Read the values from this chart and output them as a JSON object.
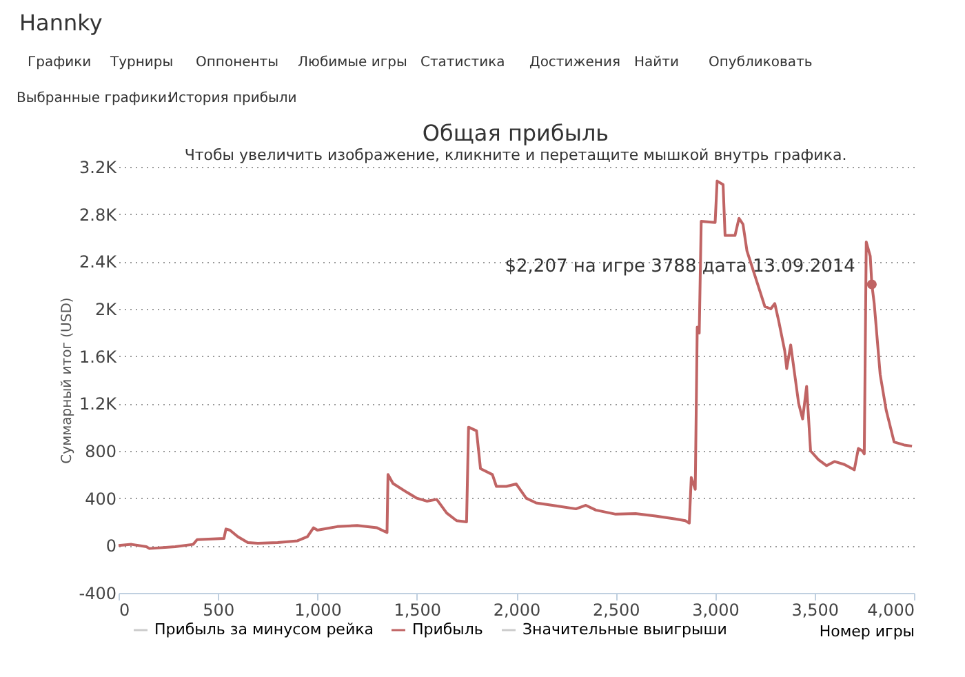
{
  "chart_data": {
    "type": "line",
    "title": "Общая прибыль",
    "subtitle": "Чтобы увеличить изображение, кликните и перетащите мышкой внутрь графика.",
    "xlabel": "Номер игры",
    "ylabel": "Суммарный итог (USD)",
    "annotations": [
      "Hannky",
      "Графики",
      "Турниры",
      "Оппоненты",
      "Любимые игры",
      "Статистика",
      "Достижения",
      "Найти",
      "Опубликовать",
      "Выбранные графики:",
      "История прибыли",
      {
        "text": "$2,207 на игре 3788 дата 13.09.2014",
        "x": 3788,
        "y": 2207
      }
    ],
    "series": [
      {
        "name": "Прибыль за минусом рейка",
        "color": "#cccccc",
        "values": [
          null
        ]
      },
      {
        "name": "Прибыль",
        "color": "#c06464",
        "x": [
          0,
          65,
          140,
          155,
          285,
          375,
          395,
          530,
          540,
          560,
          600,
          650,
          700,
          800,
          900,
          950,
          980,
          1000,
          1100,
          1200,
          1300,
          1350,
          1355,
          1380,
          1450,
          1500,
          1550,
          1600,
          1650,
          1700,
          1750,
          1760,
          1800,
          1820,
          1880,
          1900,
          1950,
          2000,
          2050,
          2100,
          2200,
          2300,
          2350,
          2400,
          2500,
          2600,
          2700,
          2800,
          2850,
          2870,
          2880,
          2900,
          2910,
          2920,
          2930,
          3000,
          3010,
          3040,
          3050,
          3100,
          3120,
          3140,
          3160,
          3250,
          3280,
          3300,
          3320,
          3350,
          3360,
          3380,
          3420,
          3440,
          3460,
          3480,
          3520,
          3560,
          3600,
          3650,
          3700,
          3720,
          3740,
          3750,
          3760,
          3780,
          3788,
          3800,
          3830,
          3860,
          3900,
          3950,
          3990
        ],
        "values": [
          0,
          10,
          -10,
          -25,
          -10,
          10,
          50,
          60,
          140,
          130,
          75,
          25,
          20,
          25,
          40,
          75,
          150,
          130,
          160,
          170,
          150,
          110,
          600,
          525,
          450,
          400,
          375,
          390,
          275,
          210,
          200,
          1000,
          970,
          650,
          600,
          500,
          500,
          520,
          400,
          360,
          335,
          310,
          340,
          300,
          265,
          270,
          250,
          225,
          210,
          190,
          575,
          475,
          1845,
          1795,
          2740,
          2730,
          3080,
          3050,
          2620,
          2620,
          2765,
          2715,
          2490,
          2020,
          2000,
          2045,
          1895,
          1645,
          1495,
          1695,
          1200,
          1070,
          1345,
          800,
          725,
          675,
          710,
          685,
          640,
          820,
          800,
          775,
          2565,
          2445,
          2207,
          2045,
          1445,
          1145,
          875,
          850,
          840
        ]
      },
      {
        "name": "Значительные выигрыши",
        "color": "#cccccc",
        "values": [
          null
        ]
      }
    ],
    "xlim": [
      0,
      4000
    ],
    "xticks": [
      0,
      500,
      {
        "value": 1000,
        "label": "1,000"
      },
      {
        "value": 1500,
        "label": "1,500"
      },
      {
        "value": 2000,
        "label": "2,000"
      },
      {
        "value": 2500,
        "label": "2,500"
      },
      {
        "value": 3000,
        "label": "3,000"
      },
      {
        "value": 3500,
        "label": "3,500"
      },
      {
        "value": 4000,
        "label": "4,000"
      }
    ],
    "ylim": [
      -400,
      3200
    ],
    "yticks": [
      -400,
      0,
      400,
      800,
      {
        "value": 1200,
        "label": "1.2K"
      },
      {
        "value": 1600,
        "label": "1.6K"
      },
      {
        "value": 2000,
        "label": "2K"
      },
      {
        "value": 2400,
        "label": "2.4K"
      },
      {
        "value": 2800,
        "label": "2.8K"
      },
      {
        "value": 3200,
        "label": "3.2K"
      }
    ],
    "grid": "y",
    "legend": "bottom",
    "marker": "none",
    "line_style": "solid"
  }
}
